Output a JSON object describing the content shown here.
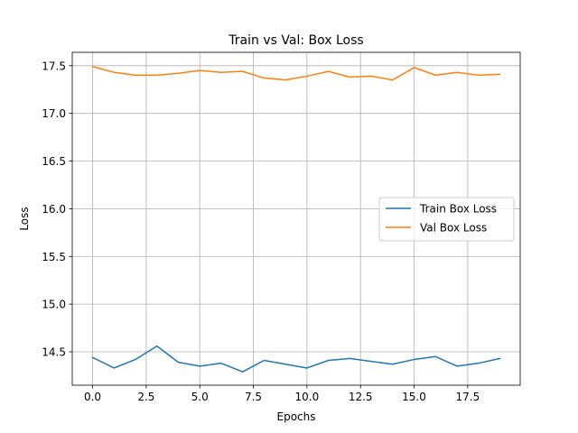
{
  "chart_data": {
    "type": "line",
    "title": "Train vs Val: Box Loss",
    "xlabel": "Epochs",
    "ylabel": "Loss",
    "xlim": [
      -0.95,
      19.95
    ],
    "ylim": [
      14.15,
      17.64
    ],
    "xticks": [
      0.0,
      2.5,
      5.0,
      7.5,
      10.0,
      12.5,
      15.0,
      17.5
    ],
    "xtick_labels": [
      "0.0",
      "2.5",
      "5.0",
      "7.5",
      "10.0",
      "12.5",
      "15.0",
      "17.5"
    ],
    "yticks": [
      14.5,
      15.0,
      15.5,
      16.0,
      16.5,
      17.0,
      17.5
    ],
    "ytick_labels": [
      "14.5",
      "15.0",
      "15.5",
      "16.0",
      "16.5",
      "17.0",
      "17.5"
    ],
    "grid": true,
    "legend_position": "center-right",
    "x": [
      0,
      1,
      2,
      3,
      4,
      5,
      6,
      7,
      8,
      9,
      10,
      11,
      12,
      13,
      14,
      15,
      16,
      17,
      18,
      19
    ],
    "series": [
      {
        "name": "Train Box Loss",
        "color": "#1f77b4",
        "values": [
          14.44,
          14.33,
          14.42,
          14.56,
          14.39,
          14.35,
          14.38,
          14.29,
          14.41,
          14.37,
          14.33,
          14.41,
          14.43,
          14.4,
          14.37,
          14.42,
          14.45,
          14.35,
          14.38,
          14.43
        ]
      },
      {
        "name": "Val Box Loss",
        "color": "#ff7f0e",
        "values": [
          17.49,
          17.43,
          17.4,
          17.4,
          17.42,
          17.45,
          17.43,
          17.44,
          17.37,
          17.35,
          17.39,
          17.44,
          17.38,
          17.39,
          17.35,
          17.48,
          17.4,
          17.43,
          17.4,
          17.41
        ]
      }
    ]
  }
}
